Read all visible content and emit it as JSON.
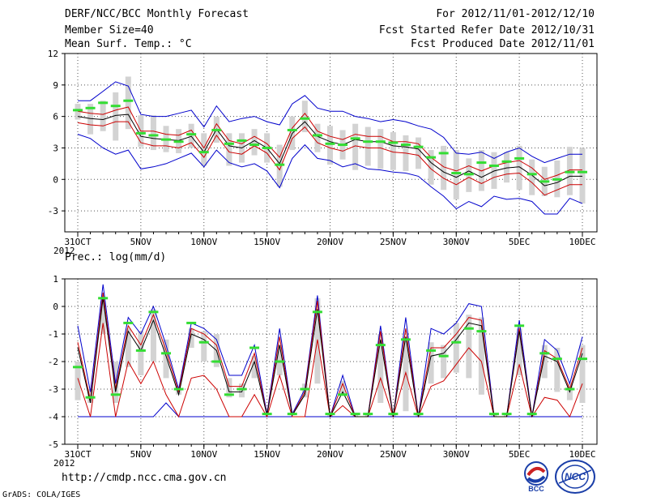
{
  "header": {
    "title": "DERF/NCC/BCC Monthly Forecast",
    "member_size": "Member Size=40",
    "variable": "Mean Surf. Temp.: °C",
    "period": "For 2012/11/01-2012/12/10",
    "start_date": "Fcst Started Refer Date 2012/10/31",
    "produced_date": "Fcst Produced Date 2012/11/01"
  },
  "footer": {
    "url": "http://cmdp.ncc.cma.gov.cn",
    "grads": "GrADS: COLA/IGES",
    "logo_left_text": "BCC",
    "logo_right_text": "NCC"
  },
  "colors": {
    "envelope": "#0000cc",
    "spread": "#cc0000",
    "mean": "#000000",
    "box": "#d3d3d3",
    "obs": "#33dd33",
    "grid": "#555555"
  },
  "chart_data": [
    {
      "type": "line",
      "title": "Mean Surf. Temp.: °C",
      "x": [
        0,
        1,
        2,
        3,
        4,
        5,
        6,
        7,
        8,
        9,
        10,
        11,
        12,
        13,
        14,
        15,
        16,
        17,
        18,
        19,
        20,
        21,
        22,
        23,
        24,
        25,
        26,
        27,
        28,
        29,
        30,
        31,
        32,
        33,
        34,
        35,
        36,
        37,
        38,
        39,
        40
      ],
      "x_tick_labels": [
        "31OCT\n2012",
        "5NOV",
        "10NOV",
        "15NOV",
        "20NOV",
        "25NOV",
        "30NOV",
        "5DEC",
        "10DEC"
      ],
      "x_tick_positions": [
        0,
        5,
        10,
        15,
        20,
        25,
        30,
        35,
        40
      ],
      "ylim": [
        -5,
        12
      ],
      "yticks": [
        -3,
        0,
        3,
        6,
        9,
        12
      ],
      "grid": true,
      "series": [
        {
          "name": "max",
          "values": [
            7.5,
            7.5,
            8.4,
            9.3,
            8.9,
            6.2,
            6.0,
            6.0,
            6.3,
            6.6,
            5.0,
            7.0,
            5.5,
            5.8,
            6.0,
            5.5,
            5.2,
            7.2,
            8.0,
            6.8,
            6.5,
            6.5,
            6.0,
            5.8,
            5.5,
            5.7,
            5.5,
            5.1,
            4.8,
            4.0,
            2.5,
            2.4,
            2.6,
            2.0,
            2.6,
            3.0,
            2.2,
            1.6,
            2.0,
            2.4,
            2.4
          ]
        },
        {
          "name": "upper",
          "values": [
            6.5,
            6.3,
            6.2,
            6.6,
            6.9,
            4.6,
            4.6,
            4.3,
            4.2,
            4.7,
            3.0,
            5.3,
            3.7,
            3.4,
            4.1,
            3.4,
            2.1,
            4.9,
            6.3,
            4.6,
            4.1,
            3.8,
            4.3,
            4.1,
            4.1,
            3.6,
            3.6,
            3.4,
            2.1,
            1.2,
            0.8,
            1.3,
            0.8,
            1.3,
            1.6,
            1.8,
            1.1,
            0.0,
            0.4,
            0.9,
            0.9
          ]
        },
        {
          "name": "mean",
          "values": [
            6.0,
            5.8,
            5.7,
            6.1,
            6.2,
            4.1,
            3.9,
            3.8,
            3.7,
            4.1,
            2.6,
            4.8,
            3.2,
            3.0,
            3.7,
            3.0,
            1.5,
            4.4,
            5.5,
            4.1,
            3.6,
            3.3,
            3.8,
            3.6,
            3.6,
            3.2,
            3.1,
            2.9,
            1.6,
            0.7,
            0.2,
            0.8,
            0.2,
            0.8,
            1.1,
            1.2,
            0.4,
            -0.6,
            -0.3,
            0.3,
            0.3
          ]
        },
        {
          "name": "lower",
          "values": [
            5.4,
            5.2,
            5.1,
            5.5,
            5.5,
            3.5,
            3.2,
            3.2,
            3.0,
            3.5,
            2.1,
            4.2,
            2.6,
            2.4,
            3.2,
            2.5,
            0.9,
            3.9,
            5.0,
            3.5,
            3.0,
            2.7,
            3.2,
            3.0,
            3.0,
            2.6,
            2.5,
            2.3,
            1.0,
            0.1,
            -0.5,
            0.2,
            -0.4,
            0.2,
            0.5,
            0.6,
            -0.3,
            -1.5,
            -1.0,
            -0.5,
            -0.5
          ]
        },
        {
          "name": "min",
          "values": [
            4.3,
            3.9,
            3.0,
            2.4,
            2.8,
            1.0,
            1.2,
            1.5,
            2.0,
            2.5,
            1.2,
            2.8,
            1.6,
            1.2,
            1.5,
            0.8,
            -0.8,
            2.0,
            3.3,
            2.0,
            1.8,
            1.2,
            1.5,
            1.0,
            0.9,
            0.7,
            0.6,
            0.3,
            -0.7,
            -1.6,
            -2.8,
            -2.1,
            -2.6,
            -1.6,
            -1.9,
            -1.8,
            -2.1,
            -3.3,
            -3.3,
            -1.8,
            -2.3
          ]
        },
        {
          "name": "box_top",
          "values": [
            7.2,
            7.2,
            7.5,
            8.3,
            9.8,
            6.1,
            6.1,
            5.1,
            4.8,
            5.3,
            4.4,
            6.0,
            4.4,
            4.4,
            4.8,
            4.4,
            3.3,
            6.0,
            7.5,
            5.3,
            5.1,
            4.7,
            5.3,
            5.0,
            4.8,
            4.5,
            4.2,
            4.0,
            2.8,
            3.2,
            2.8,
            2.0,
            2.8,
            2.6,
            2.6,
            3.2,
            1.9,
            1.2,
            1.8,
            3.1,
            3.0
          ]
        },
        {
          "name": "box_bottom",
          "values": [
            5.7,
            4.3,
            4.6,
            3.7,
            4.8,
            3.1,
            2.8,
            2.6,
            2.5,
            3.0,
            1.3,
            3.5,
            1.3,
            1.6,
            2.3,
            1.6,
            -0.7,
            2.8,
            4.5,
            2.6,
            1.4,
            1.9,
            0.9,
            1.3,
            1.0,
            0.9,
            0.8,
            1.0,
            -0.5,
            -1.0,
            -1.9,
            -1.2,
            -1.1,
            -0.9,
            -0.3,
            -1.0,
            -1.5,
            -1.6,
            -1.7,
            -1.5,
            -2.3
          ]
        },
        {
          "name": "observed",
          "values": [
            6.6,
            6.8,
            7.3,
            7.0,
            7.5,
            4.4,
            4.2,
            3.8,
            3.6,
            4.3,
            2.6,
            4.7,
            3.4,
            3.7,
            3.3,
            3.0,
            1.4,
            4.7,
            5.8,
            4.2,
            3.4,
            3.3,
            3.9,
            3.6,
            3.6,
            3.5,
            3.3,
            3.1,
            2.1,
            2.5,
            0.6,
            0.5,
            1.6,
            1.3,
            1.7,
            2.0,
            0.5,
            -0.2,
            0.0,
            0.7,
            0.7
          ]
        }
      ]
    },
    {
      "type": "line",
      "title": "Prec.: log(mm/d)",
      "x": [
        0,
        1,
        2,
        3,
        4,
        5,
        6,
        7,
        8,
        9,
        10,
        11,
        12,
        13,
        14,
        15,
        16,
        17,
        18,
        19,
        20,
        21,
        22,
        23,
        24,
        25,
        26,
        27,
        28,
        29,
        30,
        31,
        32,
        33,
        34,
        35,
        36,
        37,
        38,
        39,
        40
      ],
      "x_tick_labels": [
        "31OCT\n2012",
        "5NOV",
        "10NOV",
        "15NOV",
        "20NOV",
        "25NOV",
        "30NOV",
        "5DEC",
        "10DEC"
      ],
      "x_tick_positions": [
        0,
        5,
        10,
        15,
        20,
        25,
        30,
        35,
        40
      ],
      "ylim": [
        -5,
        1
      ],
      "yticks": [
        -5,
        -4,
        -3,
        -2,
        -1,
        0,
        1
      ],
      "grid": true,
      "series": [
        {
          "name": "max",
          "values": [
            -0.7,
            -3.1,
            0.8,
            -2.8,
            -0.4,
            -1.0,
            0.0,
            -1.4,
            -3.0,
            -0.6,
            -0.8,
            -1.2,
            -2.5,
            -2.5,
            -1.4,
            -3.9,
            -0.8,
            -3.9,
            -3.0,
            0.4,
            -4.0,
            -2.5,
            -4.0,
            -4.0,
            -0.7,
            -4.0,
            -0.4,
            -4.0,
            -0.8,
            -1.0,
            -0.6,
            0.1,
            0.0,
            -4.0,
            -4.0,
            -0.5,
            -4.0,
            -1.2,
            -1.6,
            -2.8,
            -1.1
          ]
        },
        {
          "name": "upper",
          "values": [
            -1.3,
            -3.4,
            0.5,
            -3.0,
            -0.7,
            -1.4,
            -0.3,
            -1.6,
            -3.1,
            -0.8,
            -1.0,
            -1.4,
            -2.9,
            -2.9,
            -1.7,
            -3.95,
            -1.1,
            -3.95,
            -3.1,
            0.2,
            -4.0,
            -2.8,
            -4.0,
            -4.0,
            -0.9,
            -4.0,
            -0.8,
            -4.0,
            -1.5,
            -1.5,
            -1.0,
            -0.4,
            -0.5,
            -4.0,
            -4.0,
            -0.8,
            -4.0,
            -1.6,
            -1.9,
            -3.0,
            -1.5
          ]
        },
        {
          "name": "mean",
          "values": [
            -1.5,
            -3.5,
            0.3,
            -3.1,
            -0.9,
            -1.6,
            -0.5,
            -1.8,
            -3.2,
            -1.0,
            -1.2,
            -1.6,
            -3.1,
            -3.1,
            -2.0,
            -3.95,
            -1.4,
            -3.95,
            -3.2,
            -0.1,
            -4.0,
            -3.1,
            -4.0,
            -4.0,
            -1.2,
            -4.0,
            -1.1,
            -4.0,
            -1.8,
            -1.7,
            -1.2,
            -0.6,
            -0.7,
            -4.0,
            -4.0,
            -0.9,
            -4.0,
            -1.8,
            -2.0,
            -3.1,
            -1.7
          ]
        },
        {
          "name": "lower",
          "values": [
            -2.6,
            -4.0,
            -0.6,
            -4.0,
            -2.0,
            -2.8,
            -2.0,
            -3.2,
            -4.0,
            -2.6,
            -2.5,
            -3.0,
            -4.0,
            -4.0,
            -3.2,
            -4.0,
            -2.5,
            -4.0,
            -4.0,
            -1.2,
            -4.0,
            -3.6,
            -4.0,
            -4.0,
            -2.6,
            -4.0,
            -2.4,
            -4.0,
            -2.9,
            -2.7,
            -2.1,
            -1.5,
            -2.0,
            -4.0,
            -4.0,
            -2.1,
            -4.0,
            -3.3,
            -3.4,
            -4.0,
            -2.8
          ]
        },
        {
          "name": "min",
          "values": [
            -4.0,
            -4.0,
            -4.0,
            -4.0,
            -4.0,
            -4.0,
            -4.0,
            -3.5,
            -4.0,
            -4.0,
            -4.0,
            -4.0,
            -4.0,
            -4.0,
            -4.0,
            -4.0,
            -4.0,
            -4.0,
            -4.0,
            -4.0,
            -4.0,
            -4.0,
            -4.0,
            -4.0,
            -4.0,
            -4.0,
            -4.0,
            -4.0,
            -4.0,
            -4.0,
            -4.0,
            -4.0,
            -4.0,
            -4.0,
            -4.0,
            -4.0,
            -4.0,
            -4.0,
            -4.0,
            -4.0,
            -4.0
          ]
        },
        {
          "name": "box_top",
          "values": [
            -2.0,
            -3.0,
            0.2,
            -2.0,
            -0.8,
            -0.9,
            -0.1,
            -1.2,
            -3.0,
            -0.8,
            -0.9,
            -1.0,
            -2.6,
            -2.8,
            -1.8,
            -3.9,
            -1.4,
            -3.9,
            -2.8,
            0.3,
            -3.9,
            -2.7,
            -3.9,
            -3.9,
            -1.0,
            -3.9,
            -1.1,
            -3.9,
            -1.3,
            -1.4,
            -0.6,
            -0.3,
            -0.4,
            -3.9,
            -3.9,
            -0.8,
            -3.9,
            -1.4,
            -1.5,
            -2.8,
            -1.4
          ]
        },
        {
          "name": "box_bottom",
          "values": [
            -3.4,
            -3.5,
            -1.0,
            -3.5,
            -2.2,
            -2.5,
            -2.0,
            -2.6,
            -3.2,
            -1.5,
            -2.0,
            -2.2,
            -3.3,
            -3.3,
            -2.6,
            -3.95,
            -2.5,
            -3.95,
            -3.3,
            -2.8,
            -4.0,
            -3.2,
            -4.0,
            -4.0,
            -3.5,
            -4.0,
            -3.8,
            -4.0,
            -2.8,
            -2.6,
            -2.4,
            -2.6,
            -3.2,
            -4.0,
            -4.0,
            -2.5,
            -4.0,
            -2.6,
            -3.1,
            -3.4,
            -3.5
          ]
        },
        {
          "name": "observed",
          "values": [
            -2.2,
            -3.3,
            0.3,
            -3.2,
            -0.6,
            -1.6,
            -0.2,
            -1.7,
            -3.0,
            -0.6,
            -1.3,
            -2.0,
            -3.2,
            -3.0,
            -1.5,
            -3.9,
            -2.0,
            -3.9,
            -3.0,
            -0.2,
            -3.9,
            -3.2,
            -3.9,
            -3.9,
            -1.4,
            -3.9,
            -1.2,
            -3.9,
            -1.6,
            -1.8,
            -1.3,
            -0.8,
            -0.9,
            -3.9,
            -3.9,
            -0.7,
            -3.9,
            -1.7,
            -1.9,
            -3.0,
            -1.9
          ]
        }
      ]
    }
  ]
}
